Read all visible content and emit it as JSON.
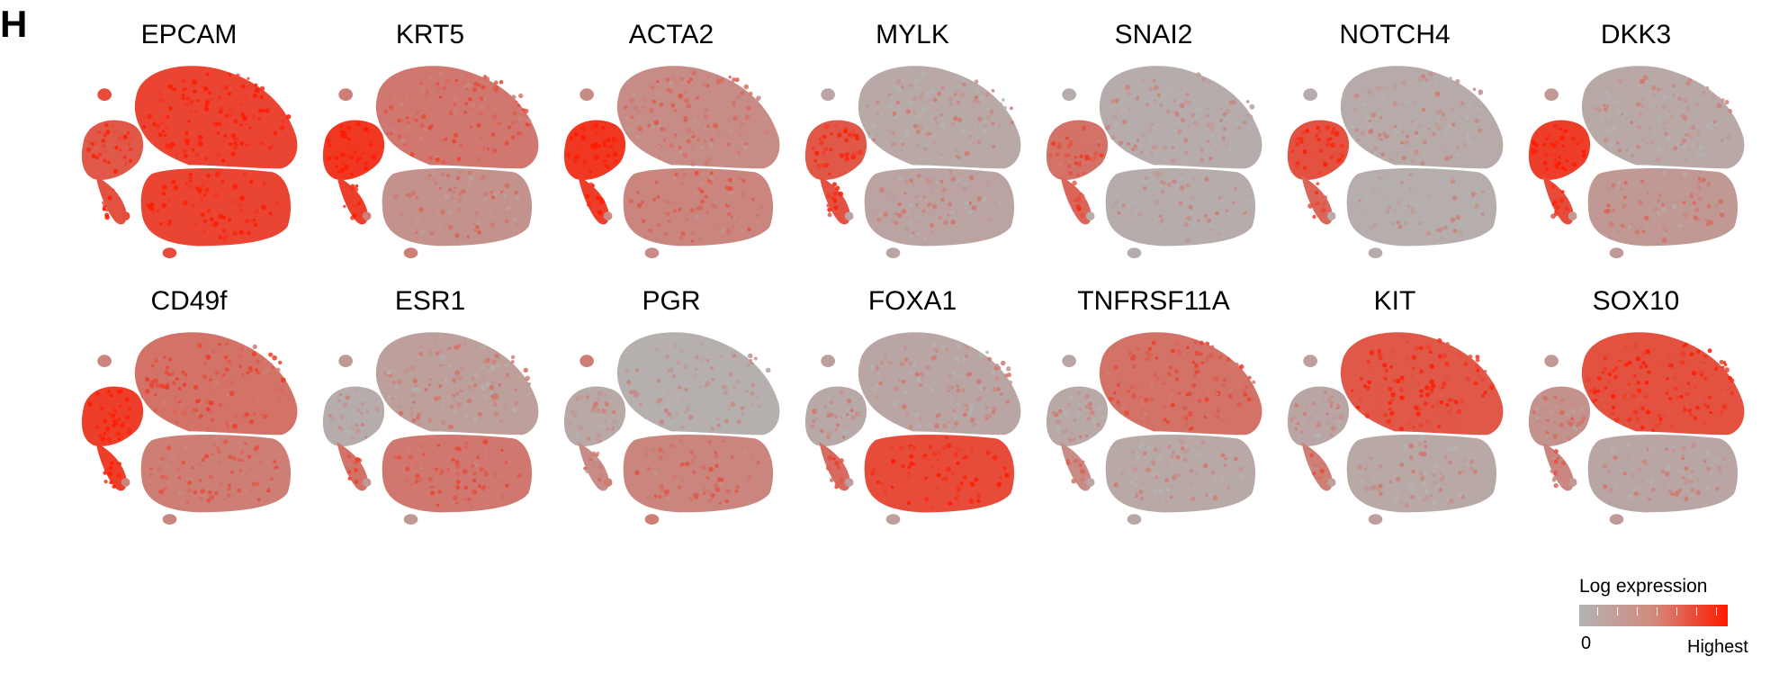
{
  "panel_label": "H",
  "legend": {
    "title": "Log expression",
    "min_label": "0",
    "max_label": "Highest",
    "low_color": "#b3b3b3",
    "high_color": "#ff1a00"
  },
  "chart_data": {
    "type": "scatter",
    "description_kind": "tSNE feature plots",
    "genes": [
      {
        "name": "EPCAM",
        "levels": {
          "main": 0.85,
          "lower": 0.85,
          "left": 0.7,
          "stream": 0.75,
          "dots": 0.8
        }
      },
      {
        "name": "KRT5",
        "levels": {
          "main": 0.45,
          "lower": 0.25,
          "left": 0.95,
          "stream": 0.9,
          "dots": 0.4
        }
      },
      {
        "name": "ACTA2",
        "levels": {
          "main": 0.3,
          "lower": 0.35,
          "left": 0.95,
          "stream": 0.9,
          "dots": 0.3
        }
      },
      {
        "name": "MYLK",
        "levels": {
          "main": 0.08,
          "lower": 0.12,
          "left": 0.7,
          "stream": 0.75,
          "dots": 0.1
        }
      },
      {
        "name": "SNAI2",
        "levels": {
          "main": 0.05,
          "lower": 0.05,
          "left": 0.5,
          "stream": 0.6,
          "dots": 0.05
        }
      },
      {
        "name": "NOTCH4",
        "levels": {
          "main": 0.06,
          "lower": 0.04,
          "left": 0.75,
          "stream": 0.6,
          "dots": 0.05
        }
      },
      {
        "name": "DKK3",
        "levels": {
          "main": 0.08,
          "lower": 0.2,
          "left": 0.9,
          "stream": 0.8,
          "dots": 0.2
        }
      },
      {
        "name": "CD49f",
        "levels": {
          "main": 0.5,
          "lower": 0.4,
          "left": 0.9,
          "stream": 0.9,
          "dots": 0.35
        }
      },
      {
        "name": "ESR1",
        "levels": {
          "main": 0.15,
          "lower": 0.45,
          "left": 0.05,
          "stream": 0.5,
          "dots": 0.2
        }
      },
      {
        "name": "PGR",
        "levels": {
          "main": 0.03,
          "lower": 0.35,
          "left": 0.08,
          "stream": 0.3,
          "dots": 0.4
        }
      },
      {
        "name": "FOXA1",
        "levels": {
          "main": 0.1,
          "lower": 0.8,
          "left": 0.08,
          "stream": 0.55,
          "dots": 0.15
        }
      },
      {
        "name": "TNFRSF11A",
        "levels": {
          "main": 0.5,
          "lower": 0.08,
          "left": 0.08,
          "stream": 0.3,
          "dots": 0.1
        }
      },
      {
        "name": "KIT",
        "levels": {
          "main": 0.7,
          "lower": 0.08,
          "left": 0.1,
          "stream": 0.4,
          "dots": 0.15
        }
      },
      {
        "name": "SOX10",
        "levels": {
          "main": 0.75,
          "lower": 0.1,
          "left": 0.25,
          "stream": 0.35,
          "dots": 0.2
        }
      }
    ]
  }
}
